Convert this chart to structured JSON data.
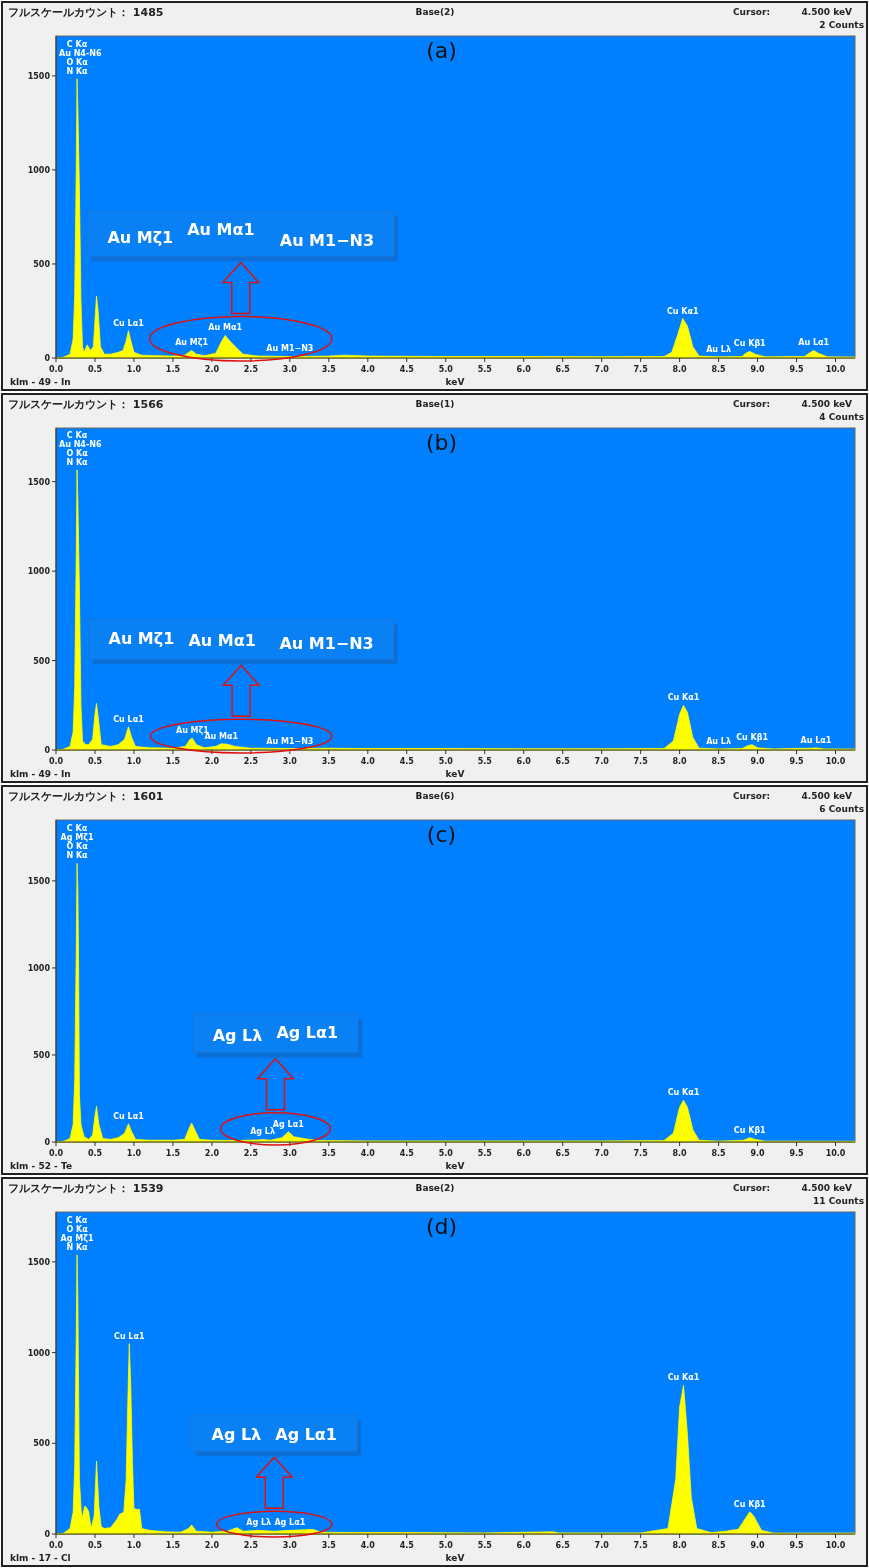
{
  "chart_data": [
    {
      "type": "area",
      "title": "フルスケールカウント： 1485",
      "subtitle": "Base(2)",
      "xlabel": "keV",
      "xlim": [
        0,
        10.25
      ],
      "ylim": [
        0,
        1712
      ],
      "xticks": [
        {
          "value": 0,
          "label": "0.0"
        },
        {
          "value": 0.5,
          "label": "0.5"
        },
        {
          "value": 1,
          "label": "1.0"
        },
        {
          "value": 1.5,
          "label": "1.5"
        },
        {
          "value": 2,
          "label": "2.0"
        },
        {
          "value": 2.5,
          "label": "2.5"
        },
        {
          "value": 3,
          "label": "3.0"
        },
        {
          "value": 3.5,
          "label": "3.5"
        },
        {
          "value": 4,
          "label": "4.0"
        },
        {
          "value": 4.5,
          "label": "4.5"
        },
        {
          "value": 5,
          "label": "5.0"
        },
        {
          "value": 5.5,
          "label": "5.5"
        },
        {
          "value": 6,
          "label": "6.0"
        },
        {
          "value": 6.5,
          "label": "6.5"
        },
        {
          "value": 7,
          "label": "7.0"
        },
        {
          "value": 7.5,
          "label": "7.5"
        },
        {
          "value": 8,
          "label": "8.0"
        },
        {
          "value": 8.5,
          "label": "8.5"
        },
        {
          "value": 9,
          "label": "9.0"
        },
        {
          "value": 9.5,
          "label": "9.5"
        },
        {
          "value": 10,
          "label": "10.0"
        }
      ],
      "yticks": [
        0,
        500,
        1000,
        1500
      ],
      "x": [
        0,
        0.1,
        0.18,
        0.22,
        0.24,
        0.26,
        0.27,
        0.28,
        0.3,
        0.32,
        0.34,
        0.36,
        0.4,
        0.44,
        0.48,
        0.5,
        0.52,
        0.54,
        0.57,
        0.62,
        0.7,
        0.8,
        0.86,
        0.9,
        0.93,
        0.96,
        1.0,
        1.1,
        1.3,
        1.5,
        1.65,
        1.74,
        1.8,
        1.9,
        2.05,
        2.12,
        2.17,
        2.23,
        2.3,
        2.4,
        2.6,
        3.0,
        3.5,
        3.7,
        4.0,
        5.0,
        6.0,
        7.0,
        7.8,
        7.9,
        7.98,
        8.04,
        8.1,
        8.17,
        8.25,
        8.5,
        8.8,
        8.85,
        8.9,
        8.97,
        9.1,
        9.6,
        9.68,
        9.72,
        9.78,
        9.9,
        10.25
      ],
      "series": [
        {
          "color": "#ffff00",
          "values": [
            0,
            5,
            20,
            100,
            330,
            1000,
            1485,
            1330,
            900,
            300,
            60,
            30,
            70,
            40,
            60,
            200,
            330,
            250,
            60,
            20,
            20,
            30,
            40,
            90,
            145,
            90,
            30,
            15,
            12,
            10,
            15,
            40,
            20,
            12,
            25,
            85,
            120,
            90,
            60,
            20,
            10,
            8,
            10,
            15,
            10,
            8,
            8,
            7,
            8,
            30,
            130,
            210,
            170,
            60,
            10,
            6,
            8,
            25,
            35,
            20,
            6,
            8,
            30,
            40,
            25,
            6,
            5
          ]
        }
      ],
      "annotations": [
        "Cursor:",
        "4.500 keV",
        "2 Counts",
        "klm - 49 - In",
        "(a)",
        "C Kα",
        "Au N4-N6",
        "O Kα",
        "N Kα",
        {
          "text": "Cu Lα1",
          "x": 0.93,
          "y": 145
        },
        {
          "text": "Cu Kα1",
          "x": 8.04,
          "y": 210
        },
        {
          "text": "Au Lλ",
          "x": 8.5,
          "y": 6
        },
        {
          "text": "Cu Kβ1",
          "x": 8.9,
          "y": 35
        },
        {
          "text": "Au Lα1",
          "x": 9.72,
          "y": 40
        },
        "Au Mζ1",
        "Au Mα1",
        "Au M1−N3",
        {
          "text": "Au Mζ1",
          "x": 1.74,
          "y": 40
        },
        {
          "text": "Au Mα1",
          "x": 2.17,
          "y": 120
        },
        {
          "text": "Au M1−N3",
          "x": 3.0,
          "y": 8
        }
      ]
    },
    {
      "type": "area",
      "title": "フルスケールカウント： 1566",
      "subtitle": "Base(1)",
      "xlabel": "keV",
      "xlim": [
        0,
        10.25
      ],
      "ylim": [
        0,
        1800
      ],
      "xticks": [
        {
          "value": 0,
          "label": "0.0"
        },
        {
          "value": 0.5,
          "label": "0.5"
        },
        {
          "value": 1,
          "label": "1.0"
        },
        {
          "value": 1.5,
          "label": "1.5"
        },
        {
          "value": 2,
          "label": "2.0"
        },
        {
          "value": 2.5,
          "label": "2.5"
        },
        {
          "value": 3,
          "label": "3.0"
        },
        {
          "value": 3.5,
          "label": "3.5"
        },
        {
          "value": 4,
          "label": "4.0"
        },
        {
          "value": 4.5,
          "label": "4.5"
        },
        {
          "value": 5,
          "label": "5.0"
        },
        {
          "value": 5.5,
          "label": "5.5"
        },
        {
          "value": 6,
          "label": "6.0"
        },
        {
          "value": 6.5,
          "label": "6.5"
        },
        {
          "value": 7,
          "label": "7.0"
        },
        {
          "value": 7.5,
          "label": "7.5"
        },
        {
          "value": 8,
          "label": "8.0"
        },
        {
          "value": 8.5,
          "label": "8.5"
        },
        {
          "value": 9,
          "label": "9.0"
        },
        {
          "value": 9.5,
          "label": "9.5"
        },
        {
          "value": 10,
          "label": "10.0"
        }
      ],
      "yticks": [
        0,
        500,
        1000,
        1500
      ],
      "x": [
        0,
        0.1,
        0.18,
        0.22,
        0.24,
        0.26,
        0.27,
        0.28,
        0.3,
        0.32,
        0.34,
        0.38,
        0.42,
        0.47,
        0.5,
        0.52,
        0.55,
        0.58,
        0.7,
        0.8,
        0.88,
        0.93,
        0.97,
        1.02,
        1.2,
        1.5,
        1.66,
        1.72,
        1.75,
        1.8,
        1.9,
        2.05,
        2.12,
        2.2,
        2.3,
        2.5,
        3.0,
        3.5,
        4.0,
        5.0,
        6.0,
        7.0,
        7.8,
        7.92,
        8.0,
        8.05,
        8.1,
        8.17,
        8.25,
        8.5,
        8.8,
        8.88,
        8.93,
        9.0,
        9.2,
        9.7,
        9.75,
        9.85,
        10.25
      ],
      "series": [
        {
          "color": "#ffff00",
          "values": [
            0,
            5,
            20,
            100,
            350,
            1100,
            1566,
            1400,
            900,
            250,
            50,
            30,
            30,
            60,
            200,
            260,
            150,
            30,
            20,
            30,
            60,
            130,
            70,
            20,
            12,
            10,
            20,
            60,
            65,
            30,
            12,
            20,
            35,
            32,
            20,
            10,
            8,
            10,
            8,
            8,
            7,
            7,
            8,
            50,
            200,
            250,
            210,
            70,
            10,
            6,
            8,
            25,
            30,
            12,
            6,
            10,
            12,
            6,
            5
          ]
        }
      ],
      "annotations": [
        "Cursor:",
        "4.500 keV",
        "4 Counts",
        "klm - 49 - In",
        "(b)",
        "C Kα",
        "Au N4-N6",
        "O Kα",
        "N Kα",
        {
          "text": "Cu Lα1",
          "x": 0.93,
          "y": 130
        },
        {
          "text": "Cu Kα1",
          "x": 8.05,
          "y": 250
        },
        {
          "text": "Au Lλ",
          "x": 8.5,
          "y": 6
        },
        {
          "text": "Cu Kβ1",
          "x": 8.93,
          "y": 30
        },
        {
          "text": "Au Lα1",
          "x": 9.75,
          "y": 12
        },
        "Au Mζ1",
        "Au Mα1",
        "Au M1−N3",
        {
          "text": "Au Mζ1",
          "x": 1.75,
          "y": 65
        },
        {
          "text": "Au Mα1",
          "x": 2.12,
          "y": 35
        },
        {
          "text": "Au M1−N3",
          "x": 3.0,
          "y": 8
        }
      ]
    },
    {
      "type": "area",
      "title": "フルスケールカウント： 1601",
      "subtitle": "Base(6)",
      "xlabel": "keV",
      "xlim": [
        0,
        10.25
      ],
      "ylim": [
        0,
        1850
      ],
      "xticks": [
        {
          "value": 0,
          "label": "0.0"
        },
        {
          "value": 0.5,
          "label": "0.5"
        },
        {
          "value": 1,
          "label": "1.0"
        },
        {
          "value": 1.5,
          "label": "1.5"
        },
        {
          "value": 2,
          "label": "2.0"
        },
        {
          "value": 2.5,
          "label": "2.5"
        },
        {
          "value": 3,
          "label": "3.0"
        },
        {
          "value": 3.5,
          "label": "3.5"
        },
        {
          "value": 4,
          "label": "4.0"
        },
        {
          "value": 4.5,
          "label": "4.5"
        },
        {
          "value": 5,
          "label": "5.0"
        },
        {
          "value": 5.5,
          "label": "5.5"
        },
        {
          "value": 6,
          "label": "6.0"
        },
        {
          "value": 6.5,
          "label": "6.5"
        },
        {
          "value": 7,
          "label": "7.0"
        },
        {
          "value": 7.5,
          "label": "7.5"
        },
        {
          "value": 8,
          "label": "8.0"
        },
        {
          "value": 8.5,
          "label": "8.5"
        },
        {
          "value": 9,
          "label": "9.0"
        },
        {
          "value": 9.5,
          "label": "9.5"
        },
        {
          "value": 10,
          "label": "10.0"
        }
      ],
      "yticks": [
        0,
        500,
        1000,
        1500
      ],
      "x": [
        0,
        0.1,
        0.18,
        0.22,
        0.24,
        0.26,
        0.27,
        0.28,
        0.29,
        0.3,
        0.32,
        0.36,
        0.42,
        0.47,
        0.5,
        0.52,
        0.55,
        0.6,
        0.7,
        0.8,
        0.88,
        0.93,
        0.97,
        1.02,
        1.2,
        1.5,
        1.65,
        1.7,
        1.74,
        1.78,
        1.84,
        2.0,
        2.3,
        2.6,
        2.65,
        2.75,
        2.9,
        2.98,
        3.05,
        3.15,
        3.25,
        3.4,
        4.0,
        5.0,
        6.0,
        7.0,
        7.8,
        7.92,
        8.0,
        8.05,
        8.1,
        8.17,
        8.25,
        8.5,
        8.82,
        8.9,
        8.97,
        9.1,
        10.25
      ],
      "series": [
        {
          "color": "#ffff00",
          "values": [
            0,
            5,
            20,
            100,
            350,
            1100,
            1601,
            1450,
            1000,
            270,
            100,
            30,
            15,
            40,
            150,
            205,
            100,
            20,
            15,
            25,
            50,
            105,
            60,
            15,
            10,
            10,
            15,
            70,
            109,
            70,
            15,
            10,
            8,
            12,
            15,
            10,
            25,
            59,
            30,
            22,
            15,
            8,
            6,
            6,
            6,
            6,
            8,
            50,
            200,
            240,
            200,
            70,
            10,
            5,
            10,
            25,
            15,
            5,
            4
          ]
        }
      ],
      "annotations": [
        "Cursor:",
        "4.500 keV",
        "6 Counts",
        "klm - 52 - Te",
        "(c)",
        "C Kα",
        "Ag Mζ1",
        "O Kα",
        "N Kα",
        {
          "text": "Cu Lα1",
          "x": 0.93,
          "y": 105
        },
        {
          "text": "Cu Kα1",
          "x": 8.05,
          "y": 240
        },
        {
          "text": "Cu Kβ1",
          "x": 8.9,
          "y": 25
        },
        "Ag Lλ",
        "Ag Lα1",
        {
          "text": "Ag Lλ",
          "x": 2.65,
          "y": 15
        },
        {
          "text": "Ag Lα1",
          "x": 2.98,
          "y": 59
        }
      ]
    },
    {
      "type": "area",
      "title": "フルスケールカウント： 1539",
      "subtitle": "Base(2)",
      "xlabel": "keV",
      "xlim": [
        0,
        10.25
      ],
      "ylim": [
        0,
        1775
      ],
      "xticks": [
        {
          "value": 0,
          "label": "0.0"
        },
        {
          "value": 0.5,
          "label": "0.5"
        },
        {
          "value": 1,
          "label": "1.0"
        },
        {
          "value": 1.5,
          "label": "1.5"
        },
        {
          "value": 2,
          "label": "2.0"
        },
        {
          "value": 2.5,
          "label": "2.5"
        },
        {
          "value": 3,
          "label": "3.0"
        },
        {
          "value": 3.5,
          "label": "3.5"
        },
        {
          "value": 4,
          "label": "4.0"
        },
        {
          "value": 4.5,
          "label": "4.5"
        },
        {
          "value": 5,
          "label": "5.0"
        },
        {
          "value": 5.5,
          "label": "5.5"
        },
        {
          "value": 6,
          "label": "6.0"
        },
        {
          "value": 6.5,
          "label": "6.5"
        },
        {
          "value": 7,
          "label": "7.0"
        },
        {
          "value": 7.5,
          "label": "7.5"
        },
        {
          "value": 8,
          "label": "8.0"
        },
        {
          "value": 8.5,
          "label": "8.5"
        },
        {
          "value": 9,
          "label": "9.0"
        },
        {
          "value": 9.5,
          "label": "9.5"
        },
        {
          "value": 10,
          "label": "10.0"
        }
      ],
      "yticks": [
        0,
        500,
        1000,
        1500
      ],
      "x": [
        0,
        0.1,
        0.18,
        0.22,
        0.24,
        0.26,
        0.27,
        0.28,
        0.3,
        0.33,
        0.37,
        0.4,
        0.42,
        0.45,
        0.49,
        0.52,
        0.55,
        0.58,
        0.62,
        0.7,
        0.78,
        0.82,
        0.87,
        0.9,
        0.92,
        0.94,
        0.96,
        0.98,
        1.0,
        1.04,
        1.07,
        1.1,
        1.2,
        1.4,
        1.6,
        1.7,
        1.74,
        1.8,
        2.0,
        2.2,
        2.32,
        2.4,
        2.6,
        2.8,
        3.0,
        3.3,
        3.4,
        3.8,
        4.5,
        5.5,
        6.38,
        6.45,
        7.5,
        7.85,
        7.95,
        8.0,
        8.05,
        8.1,
        8.15,
        8.22,
        8.4,
        8.6,
        8.65,
        8.75,
        8.82,
        8.9,
        8.95,
        9.05,
        9.2,
        10.25
      ],
      "series": [
        {
          "color": "#ffff00",
          "values": [
            0,
            5,
            30,
            120,
            370,
            1100,
            1539,
            1300,
            300,
            80,
            154,
            140,
            120,
            30,
            100,
            402,
            150,
            40,
            30,
            35,
            80,
            110,
            120,
            300,
            700,
            1049,
            800,
            400,
            140,
            135,
            136,
            30,
            20,
            12,
            10,
            30,
            50,
            15,
            10,
            15,
            35,
            15,
            20,
            15,
            20,
            25,
            10,
            8,
            8,
            6,
            12,
            6,
            6,
            30,
            300,
            700,
            819,
            550,
            200,
            30,
            8,
            15,
            20,
            25,
            70,
            122,
            100,
            20,
            5,
            5
          ]
        }
      ],
      "annotations": [
        "Cursor:",
        "4.500 keV",
        "11 Counts",
        "klm - 17 - Cl",
        "(d)",
        "C Kα",
        "O Kα",
        "Ag Mζ1",
        "N Kα",
        {
          "text": "Cu Lα1",
          "x": 0.94,
          "y": 1049
        },
        {
          "text": "Cu Kα1",
          "x": 8.05,
          "y": 819
        },
        {
          "text": "Cu Kβ1",
          "x": 8.9,
          "y": 122
        },
        "Ag Lλ",
        "Ag Lα1",
        {
          "text": "Ag Lλ",
          "x": 2.6,
          "y": 20
        },
        {
          "text": "Ag Lα1",
          "x": 3.0,
          "y": 20
        }
      ]
    }
  ]
}
